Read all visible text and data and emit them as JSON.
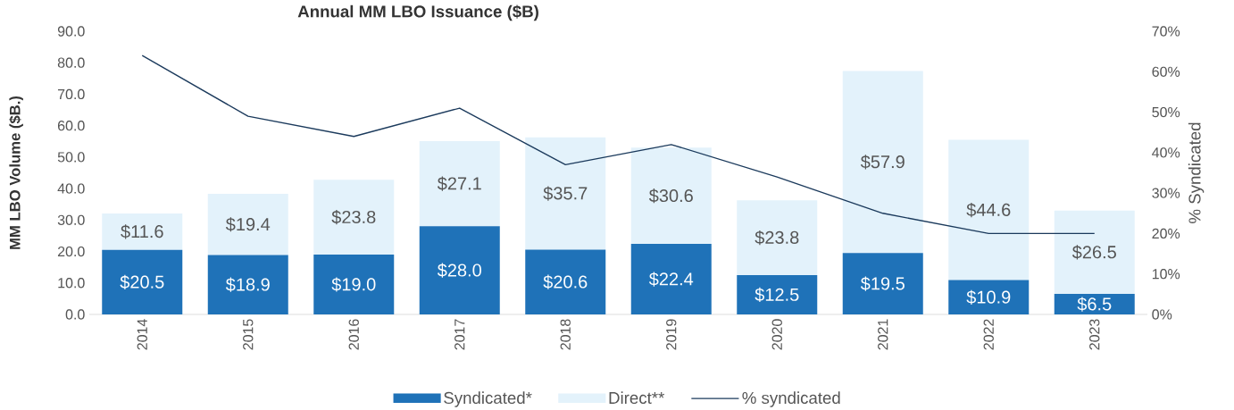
{
  "chart_data": {
    "type": "bar",
    "stacked": true,
    "title": "Annual MM LBO Issuance ($B)",
    "ylabel": "MM LBO Volume ($B.)",
    "y2label": "% Syndicated",
    "categories": [
      "2014",
      "2015",
      "2016",
      "2017",
      "2018",
      "2019",
      "2020",
      "2021",
      "2022",
      "2023"
    ],
    "series": [
      {
        "name": "Syndicated*",
        "color": "#1f72b8",
        "values": [
          20.5,
          18.9,
          19.0,
          28.0,
          20.6,
          22.4,
          12.5,
          19.5,
          10.9,
          6.5
        ],
        "value_labels": [
          "$20.5",
          "$18.9",
          "$19.0",
          "$28.0",
          "$20.6",
          "$22.4",
          "$12.5",
          "$19.5",
          "$10.9",
          "$6.5"
        ]
      },
      {
        "name": "Direct**",
        "color": "#e3f2fb",
        "values": [
          11.6,
          19.4,
          23.8,
          27.1,
          35.7,
          30.6,
          23.8,
          57.9,
          44.6,
          26.5
        ],
        "value_labels": [
          "$11.6",
          "$19.4",
          "$23.8",
          "$27.1",
          "$35.7",
          "$30.6",
          "$23.8",
          "$57.9",
          "$44.6",
          "$26.5"
        ]
      },
      {
        "name": "% syndicated",
        "type": "line",
        "axis": "y2",
        "color": "#1b3a5c",
        "values": [
          64,
          49,
          44,
          51,
          37,
          42,
          34,
          25,
          20,
          20
        ]
      }
    ],
    "ylim": [
      0,
      90
    ],
    "yticks": [
      {
        "value": 0,
        "label": "0.0"
      },
      {
        "value": 10,
        "label": "10.0"
      },
      {
        "value": 20,
        "label": "20.0"
      },
      {
        "value": 30,
        "label": "30.0"
      },
      {
        "value": 40,
        "label": "40.0"
      },
      {
        "value": 50,
        "label": "50.0"
      },
      {
        "value": 60,
        "label": "60.0"
      },
      {
        "value": 70,
        "label": "70.0"
      },
      {
        "value": 80,
        "label": "80.0"
      },
      {
        "value": 90,
        "label": "90.0"
      }
    ],
    "y2lim": [
      0,
      70
    ],
    "y2ticks": [
      {
        "value": 0,
        "label": "0%"
      },
      {
        "value": 10,
        "label": "10%"
      },
      {
        "value": 20,
        "label": "20%"
      },
      {
        "value": 30,
        "label": "30%"
      },
      {
        "value": 40,
        "label": "40%"
      },
      {
        "value": 50,
        "label": "50%"
      },
      {
        "value": 60,
        "label": "60%"
      },
      {
        "value": 70,
        "label": "70%"
      }
    ],
    "legend": "bottom"
  }
}
